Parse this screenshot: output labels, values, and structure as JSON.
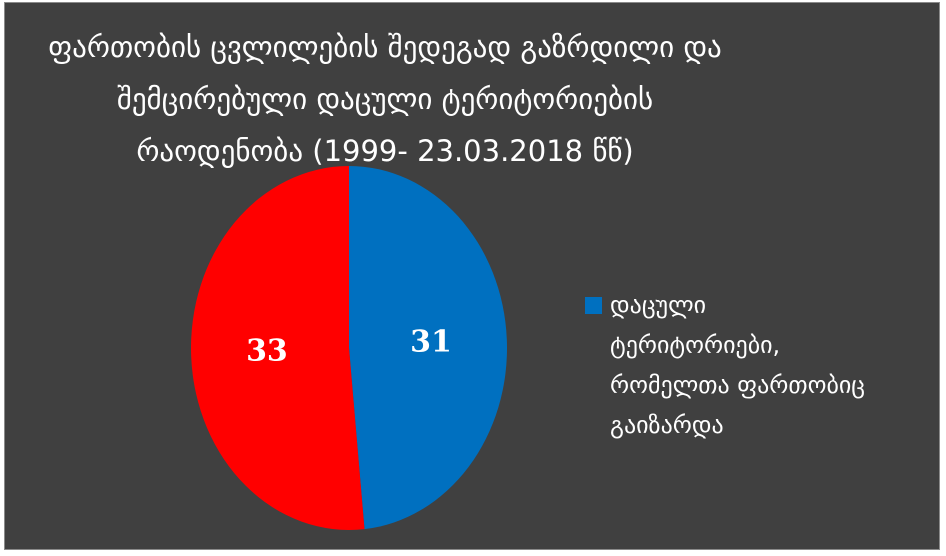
{
  "chart_data": {
    "type": "pie",
    "title_lines": [
      "ფართობის ცვლილების შედეგად გაზრდილი და",
      "შემცირებული დაცული ტერიტორიების",
      "რაოდენობა (1999- 23.03.2018 წწ)"
    ],
    "slices": [
      {
        "value": 31,
        "label": "31",
        "color": "#0070C0"
      },
      {
        "value": 33,
        "label": "33",
        "color": "#FF0000"
      }
    ],
    "legend": {
      "placement": "right",
      "entries": [
        {
          "color": "#0070C0",
          "lines": [
            "დაცული",
            "ტერიტორიები,",
            "რომელთა ფართობიც",
            "გაიზარდა"
          ]
        }
      ]
    }
  }
}
